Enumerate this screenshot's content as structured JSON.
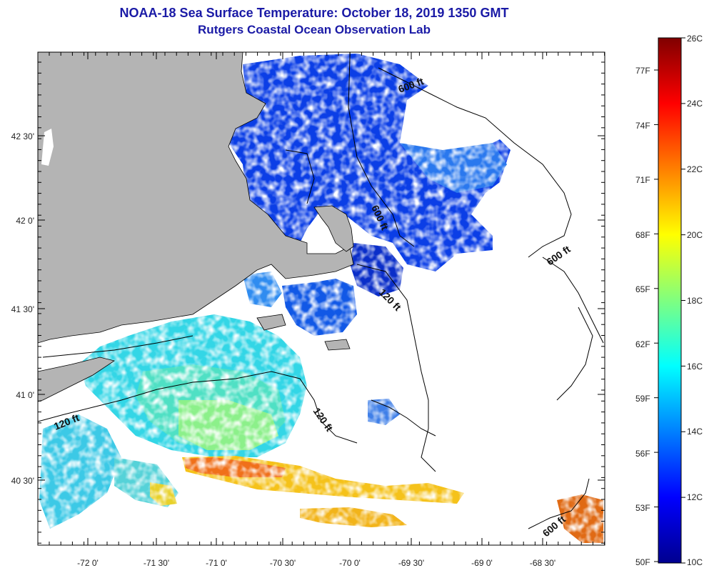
{
  "header": {
    "title": "NOAA-18 Sea Surface Temperature:  October 18, 2019 1350 GMT",
    "subtitle": "Rutgers Coastal Ocean Observation Lab"
  },
  "map": {
    "lon_ticks": [
      "-72 0'",
      "-71 30'",
      "-71 0'",
      "-70 30'",
      "-70 0'",
      "-69 30'",
      "-69 0'",
      "-68 30'"
    ],
    "lat_ticks": [
      "42 30'",
      "42 0'",
      "41 30'",
      "41 0'",
      "40 30'"
    ],
    "contour_labels": [
      "600 ft",
      "600 ft",
      "600 ft",
      "600 ft",
      "120 ft",
      "120 ft",
      "120 ft"
    ],
    "colors": {
      "land": "#b4b4b4",
      "no_data": "#ffffff",
      "coast": "#000000"
    }
  },
  "colorbar": {
    "fahrenheit": [
      "77F",
      "74F",
      "71F",
      "68F",
      "65F",
      "62F",
      "59F",
      "56F",
      "53F",
      "50F"
    ],
    "celsius": [
      "26C",
      "24C",
      "22C",
      "20C",
      "18C",
      "16C",
      "14C",
      "12C",
      "10C"
    ],
    "min_c": 10,
    "max_c": 26,
    "colormap": "jet"
  }
}
